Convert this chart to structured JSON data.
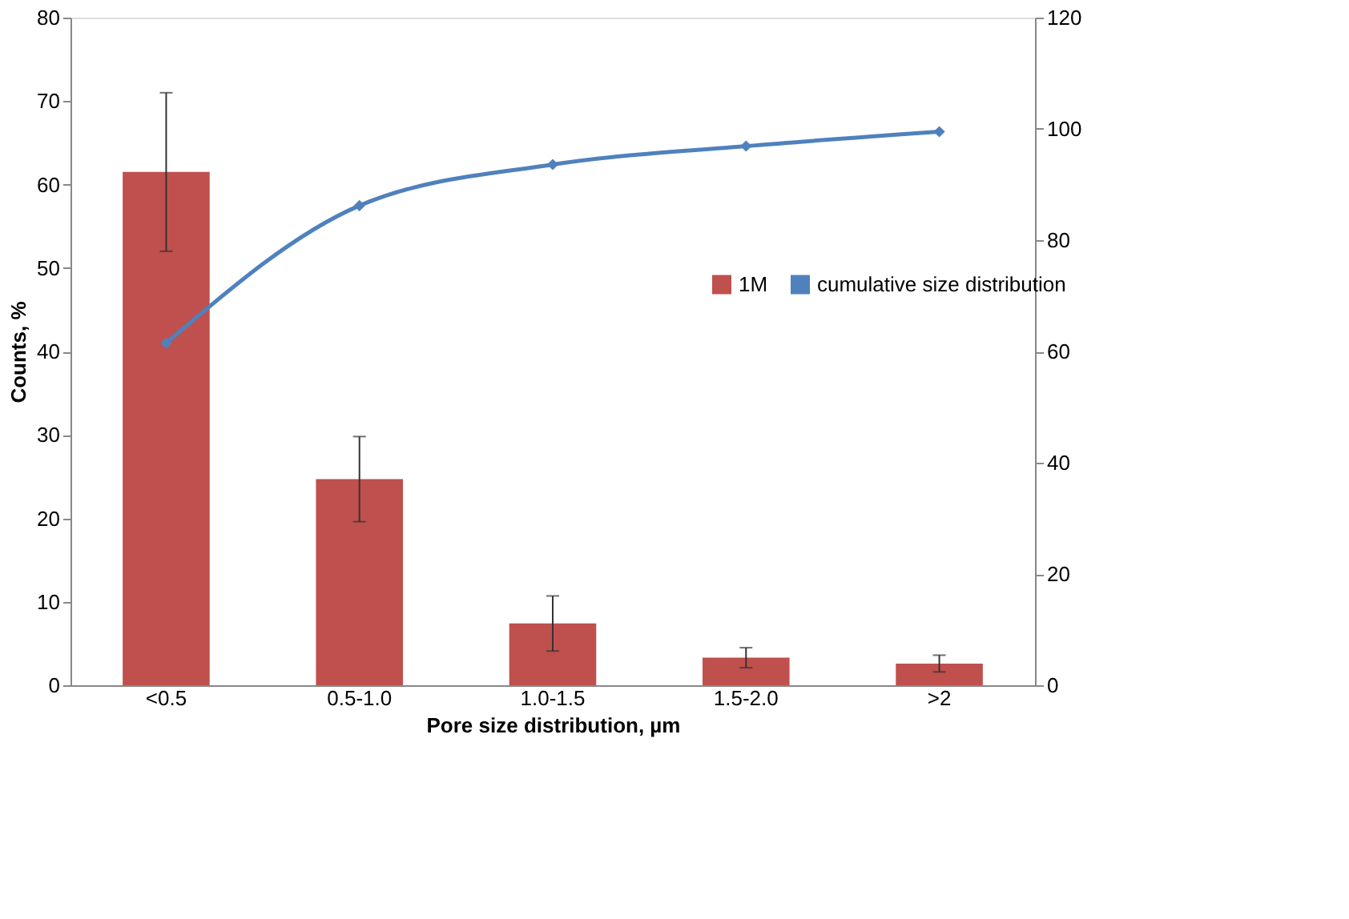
{
  "chart_data": {
    "type": "bar",
    "xlabel": "Pore size distribution, µm",
    "ylabel": "Counts, %",
    "categories": [
      "<0.5",
      "0.5-1.0",
      "1.0-1.5",
      "1.5-2.0",
      ">2"
    ],
    "series": [
      {
        "name": "1M",
        "color": "#c0504d",
        "values": [
          61.5,
          24.7,
          7.4,
          3.3,
          2.6
        ],
        "errors": [
          9.5,
          5.1,
          3.3,
          1.2,
          1.0
        ]
      },
      {
        "name": "cumulative size distribution",
        "type": "line",
        "axis": "y2",
        "color": "#4f81bd",
        "marker": "diamond",
        "values": [
          61.5,
          86.2,
          93.6,
          96.9,
          99.5
        ]
      }
    ],
    "ylim": [
      0,
      80
    ],
    "yticks": [
      0,
      10,
      20,
      30,
      40,
      50,
      60,
      70,
      80
    ],
    "y2lim": [
      0,
      120
    ],
    "y2ticks": [
      0,
      20,
      40,
      60,
      80,
      100,
      120
    ],
    "grid": false,
    "legend": "right"
  }
}
